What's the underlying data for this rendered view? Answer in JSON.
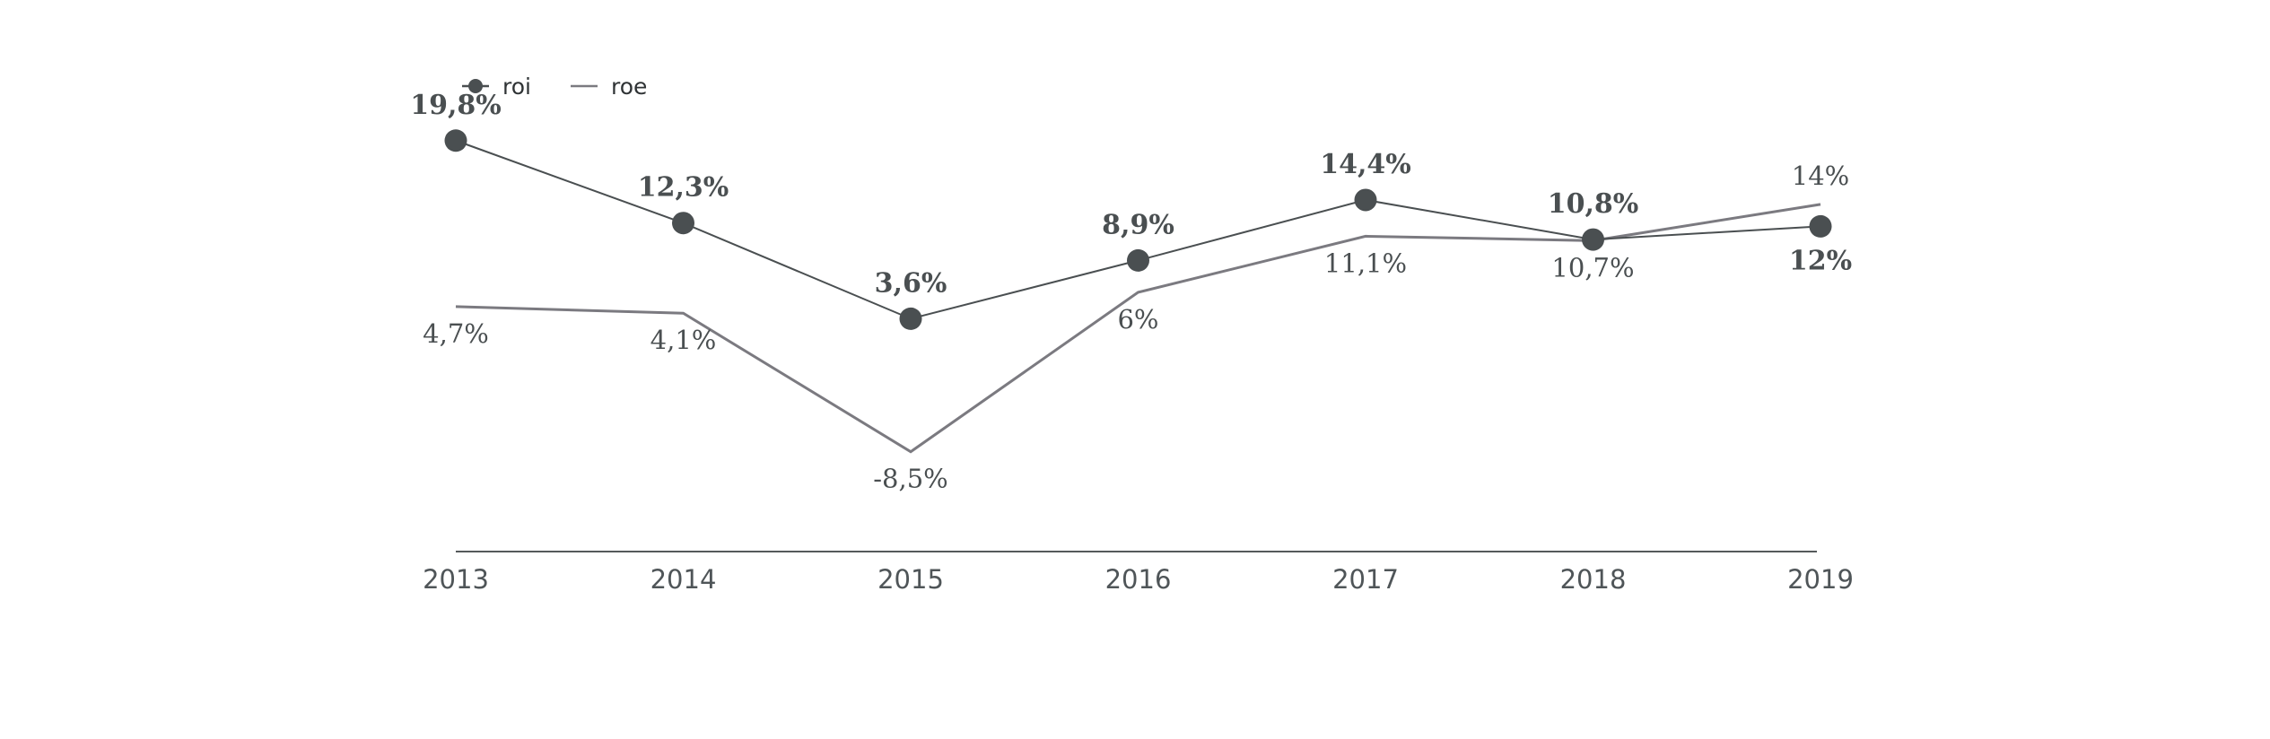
{
  "colors": {
    "roi": "#4a4f51",
    "roe": "#7b7a80",
    "axis": "#55595b"
  },
  "legend": {
    "placement": "top-left",
    "roi_label": "roi",
    "roe_label": "roe"
  },
  "chart_data": {
    "type": "line",
    "x": [
      "2013",
      "2014",
      "2015",
      "2016",
      "2017",
      "2018",
      "2019"
    ],
    "series": [
      {
        "name": "roi",
        "values": [
          19.8,
          12.3,
          3.6,
          8.9,
          14.4,
          10.8,
          12
        ],
        "labels": [
          "19,8%",
          "12,3%",
          "3,6%",
          "8,9%",
          "14,4%",
          "10,8%",
          "12%"
        ],
        "marker": "circle"
      },
      {
        "name": "roe",
        "values": [
          4.7,
          4.1,
          -8.5,
          6,
          11.1,
          10.7,
          14
        ],
        "labels": [
          "4,7%",
          "4,1%",
          "-8,5%",
          "6%",
          "11,1%",
          "10,7%",
          "14%"
        ],
        "marker": "none"
      }
    ],
    "title": "",
    "xlabel": "",
    "ylabel": "",
    "ylim": [
      -20,
      25
    ],
    "grid": false,
    "y_axis_visible": false
  }
}
